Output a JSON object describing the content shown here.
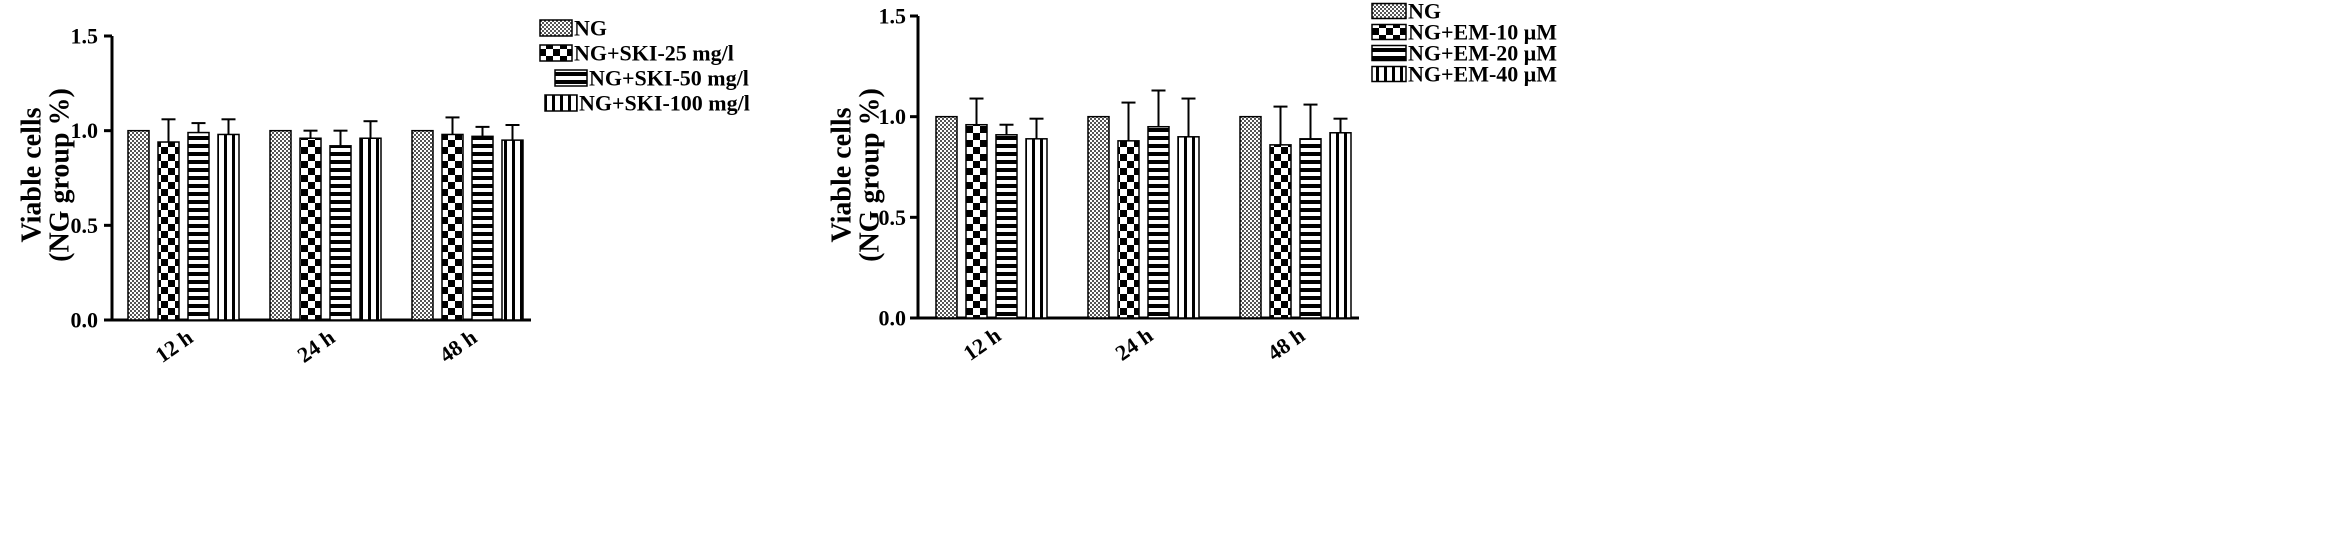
{
  "chart_data": [
    {
      "type": "bar",
      "ylabel_line1": "Viable cells",
      "ylabel_line2": "(NG group %)",
      "ylim": [
        0,
        1.5
      ],
      "yticks": [
        "0.0",
        "0.5",
        "1.0",
        "1.5"
      ],
      "categories": [
        "12 h",
        "24 h",
        "48 h"
      ],
      "legend_position": "top-right",
      "series": [
        {
          "name": "NG",
          "pattern": "grid",
          "values": [
            1.0,
            1.0,
            1.0
          ],
          "errors": [
            0,
            0,
            0
          ]
        },
        {
          "name": "NG+SKI-25 mg/l",
          "pattern": "checker",
          "values": [
            0.94,
            0.96,
            0.98
          ],
          "errors": [
            0.12,
            0.04,
            0.09
          ]
        },
        {
          "name": "NG+SKI-50 mg/l",
          "pattern": "hlines",
          "values": [
            0.99,
            0.92,
            0.97
          ],
          "errors": [
            0.05,
            0.08,
            0.05
          ]
        },
        {
          "name": "NG+SKI-100 mg/l",
          "pattern": "vlines",
          "values": [
            0.98,
            0.96,
            0.95
          ],
          "errors": [
            0.08,
            0.09,
            0.08
          ]
        }
      ]
    },
    {
      "type": "bar",
      "ylabel_line1": "Viable cells",
      "ylabel_line2": "(NG group %)",
      "ylim": [
        0,
        1.5
      ],
      "yticks": [
        "0.0",
        "0.5",
        "1.0",
        "1.5"
      ],
      "categories": [
        "12 h",
        "24 h",
        "48 h"
      ],
      "legend_position": "top-right",
      "series": [
        {
          "name": "NG",
          "pattern": "grid",
          "values": [
            1.0,
            1.0,
            1.0
          ],
          "errors": [
            0,
            0,
            0
          ]
        },
        {
          "name": "NG+EM-10 μM",
          "pattern": "checker",
          "values": [
            0.96,
            0.88,
            0.86
          ],
          "errors": [
            0.13,
            0.19,
            0.19
          ]
        },
        {
          "name": "NG+EM-20 μM",
          "pattern": "hlines",
          "values": [
            0.91,
            0.95,
            0.89
          ],
          "errors": [
            0.05,
            0.18,
            0.17
          ]
        },
        {
          "name": "NG+EM-40 μM",
          "pattern": "vlines",
          "values": [
            0.89,
            0.9,
            0.92
          ],
          "errors": [
            0.1,
            0.19,
            0.07
          ]
        }
      ]
    }
  ]
}
